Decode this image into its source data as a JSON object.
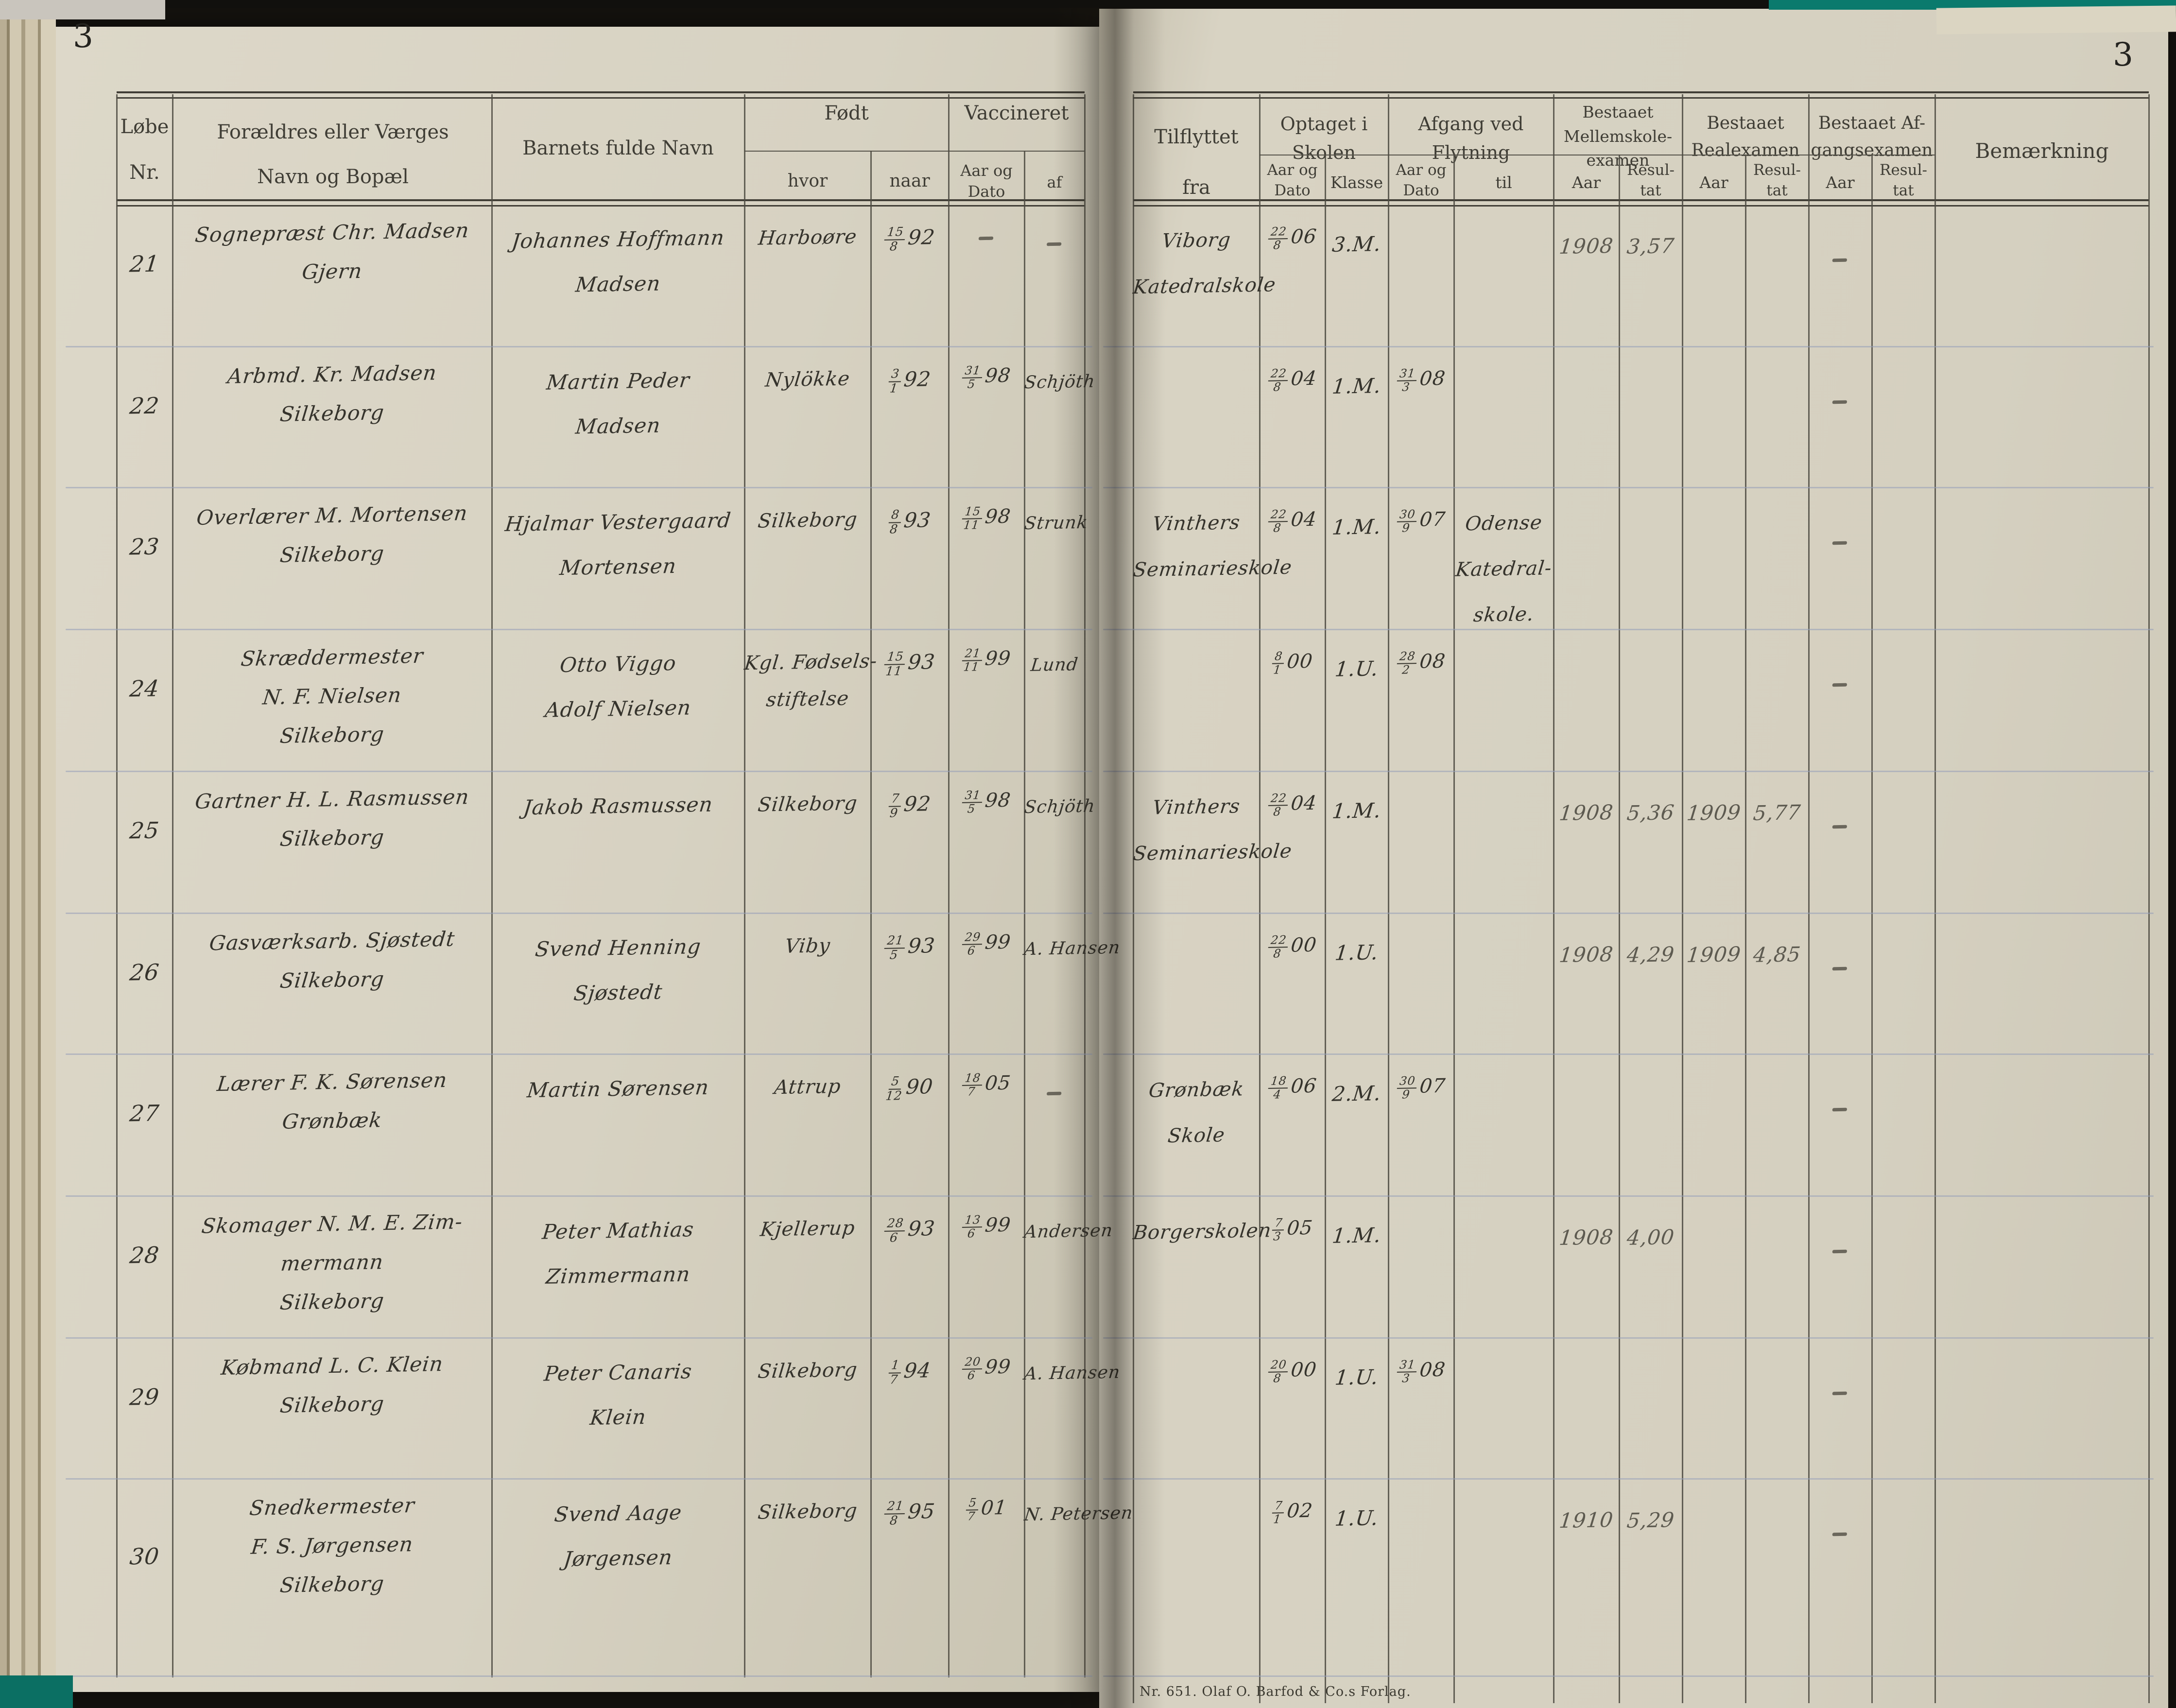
{
  "page": {
    "left_number": "3",
    "right_number": "3",
    "imprint": "Nr. 651. Olaf O. Barfod & Co.s Forlag."
  },
  "headers": {
    "left": {
      "lobe_nr": "Løbe\nNr.",
      "parents": "Forældres eller Værges\nNavn og Bopæl",
      "child_name": "Barnets fulde Navn",
      "born": "Født",
      "hvor": "hvor",
      "naar": "naar",
      "vaccinated": "Vaccineret",
      "aar_og_dato": "Aar og\nDato",
      "af": "af"
    },
    "right": {
      "moved_from": "Tilflyttet\nfra",
      "admitted": "Optaget i\nSkolen",
      "departure": "Afgang ved\nFlytning",
      "mellemskole": "Bestaaet\nMellemskole-\nexamen",
      "realexamen": "Bestaaet\nRealexamen",
      "afgangsexamen": "Bestaaet Af-\ngangsexamen",
      "remark": "Bemærkning",
      "aar_og_dato": "Aar og\nDato",
      "klasse": "Klasse",
      "til": "til",
      "aar": "Aar",
      "resultat": "Resul-\ntat"
    }
  },
  "left_rows": [
    {
      "nr": "21",
      "parent": [
        "Sognepræst Chr. Madsen",
        "Gjern"
      ],
      "child": [
        "Johannes Hoffmann",
        "Madsen"
      ],
      "born_where": [
        "Harboøre"
      ],
      "born_when": "15/8 92",
      "vacc_date": "–",
      "vacc_by": "–"
    },
    {
      "nr": "22",
      "parent": [
        "Arbmd. Kr. Madsen",
        "Silkeborg"
      ],
      "child": [
        "Martin Peder",
        "Madsen"
      ],
      "born_where": [
        "Nylökke"
      ],
      "born_when": "3/1 92",
      "vacc_date": "31/5 98",
      "vacc_by": "Schjöth"
    },
    {
      "nr": "23",
      "parent": [
        "Overlærer M. Mortensen",
        "Silkeborg"
      ],
      "child": [
        "Hjalmar Vestergaard",
        "Mortensen"
      ],
      "born_where": [
        "Silkeborg"
      ],
      "born_when": "8/8 93",
      "vacc_date": "15/11 98",
      "vacc_by": "Strunk"
    },
    {
      "nr": "24",
      "parent": [
        "Skræddermester",
        "N. F. Nielsen",
        "Silkeborg"
      ],
      "child": [
        "Otto Viggo",
        "Adolf Nielsen"
      ],
      "born_where": [
        "Kgl. Fødsels-",
        "stiftelse"
      ],
      "born_when": "15/11 93",
      "vacc_date": "21/11 99",
      "vacc_by": "Lund"
    },
    {
      "nr": "25",
      "parent": [
        "Gartner H. L. Rasmussen",
        "Silkeborg"
      ],
      "child": [
        "Jakob Rasmussen"
      ],
      "born_where": [
        "Silkeborg"
      ],
      "born_when": "7/9 92",
      "vacc_date": "31/5 98",
      "vacc_by": "Schjöth"
    },
    {
      "nr": "26",
      "parent": [
        "Gasværksarb. Sjøstedt",
        "Silkeborg"
      ],
      "child": [
        "Svend Henning",
        "Sjøstedt"
      ],
      "born_where": [
        "Viby"
      ],
      "born_when": "21/5 93",
      "vacc_date": "29/6 99",
      "vacc_by": "A. Hansen"
    },
    {
      "nr": "27",
      "parent": [
        "Lærer F. K. Sørensen",
        "Grønbæk"
      ],
      "child": [
        "Martin Sørensen"
      ],
      "born_where": [
        "Attrup"
      ],
      "born_when": "5/12 90",
      "vacc_date": "18/7 05",
      "vacc_by": "–"
    },
    {
      "nr": "28",
      "parent": [
        "Skomager N. M. E. Zim-",
        "mermann",
        "Silkeborg"
      ],
      "child": [
        "Peter Mathias",
        "Zimmermann"
      ],
      "born_where": [
        "Kjellerup"
      ],
      "born_when": "28/6 93",
      "vacc_date": "13/6 99",
      "vacc_by": "Andersen"
    },
    {
      "nr": "29",
      "parent": [
        "Købmand L. C. Klein",
        "Silkeborg"
      ],
      "child": [
        "Peter Canaris",
        "Klein"
      ],
      "born_where": [
        "Silkeborg"
      ],
      "born_when": "1/7 94",
      "vacc_date": "20/6 99",
      "vacc_by": "A. Hansen"
    },
    {
      "nr": "30",
      "parent": [
        "Snedkermester",
        "F. S. Jørgensen",
        "Silkeborg"
      ],
      "child": [
        "Svend Aage",
        "Jørgensen"
      ],
      "born_where": [
        "Silkeborg"
      ],
      "born_when": "21/8 95",
      "vacc_date": "5/7 01",
      "vacc_by": "N. Petersen"
    }
  ],
  "right_rows": [
    {
      "from": [
        "Viborg",
        "Katedralskole"
      ],
      "adm_date": "22/8 06",
      "adm_class": "3.M.",
      "dep_date": "",
      "dep_to": [],
      "ms_year": "1908",
      "ms_result": "3,57",
      "re_year": "",
      "re_result": "",
      "af_year": "–",
      "af_result": "",
      "remark": ""
    },
    {
      "from": [],
      "adm_date": "22/8 04",
      "adm_class": "1.M.",
      "dep_date": "31/3 08",
      "dep_to": [],
      "ms_year": "",
      "ms_result": "",
      "re_year": "",
      "re_result": "",
      "af_year": "–",
      "af_result": "",
      "remark": ""
    },
    {
      "from": [
        "Vinthers",
        "Seminarieskole"
      ],
      "adm_date": "22/8 04",
      "adm_class": "1.M.",
      "dep_date": "30/9 07",
      "dep_to": [
        "Odense",
        "Katedral-",
        "skole."
      ],
      "ms_year": "",
      "ms_result": "",
      "re_year": "",
      "re_result": "",
      "af_year": "–",
      "af_result": "",
      "remark": ""
    },
    {
      "from": [],
      "adm_date": "8/1 00",
      "adm_class": "1.U.",
      "dep_date": "28/2 08",
      "dep_to": [],
      "ms_year": "",
      "ms_result": "",
      "re_year": "",
      "re_result": "",
      "af_year": "–",
      "af_result": "",
      "remark": ""
    },
    {
      "from": [
        "Vinthers",
        "Seminarieskole"
      ],
      "adm_date": "22/8 04",
      "adm_class": "1.M.",
      "dep_date": "",
      "dep_to": [],
      "ms_year": "1908",
      "ms_result": "5,36",
      "re_year": "1909",
      "re_result": "5,77",
      "af_year": "–",
      "af_result": "",
      "remark": ""
    },
    {
      "from": [],
      "adm_date": "22/8 00",
      "adm_class": "1.U.",
      "dep_date": "",
      "dep_to": [],
      "ms_year": "1908",
      "ms_result": "4,29",
      "re_year": "1909",
      "re_result": "4,85",
      "af_year": "–",
      "af_result": "",
      "remark": ""
    },
    {
      "from": [
        "Grønbæk",
        "Skole"
      ],
      "adm_date": "18/4 06",
      "adm_class": "2.M.",
      "dep_date": "30/9 07",
      "dep_to": [],
      "ms_year": "",
      "ms_result": "",
      "re_year": "",
      "re_result": "",
      "af_year": "–",
      "af_result": "",
      "remark": ""
    },
    {
      "from": [
        "Borgerskolen"
      ],
      "adm_date": "7/3 05",
      "adm_class": "1.M.",
      "dep_date": "",
      "dep_to": [],
      "ms_year": "1908",
      "ms_result": "4,00",
      "re_year": "",
      "re_result": "",
      "af_year": "–",
      "af_result": "",
      "remark": ""
    },
    {
      "from": [],
      "adm_date": "20/8 00",
      "adm_class": "1.U.",
      "dep_date": "31/3 08",
      "dep_to": [],
      "ms_year": "",
      "ms_result": "",
      "re_year": "",
      "re_result": "",
      "af_year": "–",
      "af_result": "",
      "remark": ""
    },
    {
      "from": [],
      "adm_date": "7/1 02",
      "adm_class": "1.U.",
      "dep_date": "",
      "dep_to": [],
      "ms_year": "1910",
      "ms_result": "5,29",
      "re_year": "",
      "re_result": "",
      "af_year": "–",
      "af_result": "",
      "remark": ""
    }
  ]
}
